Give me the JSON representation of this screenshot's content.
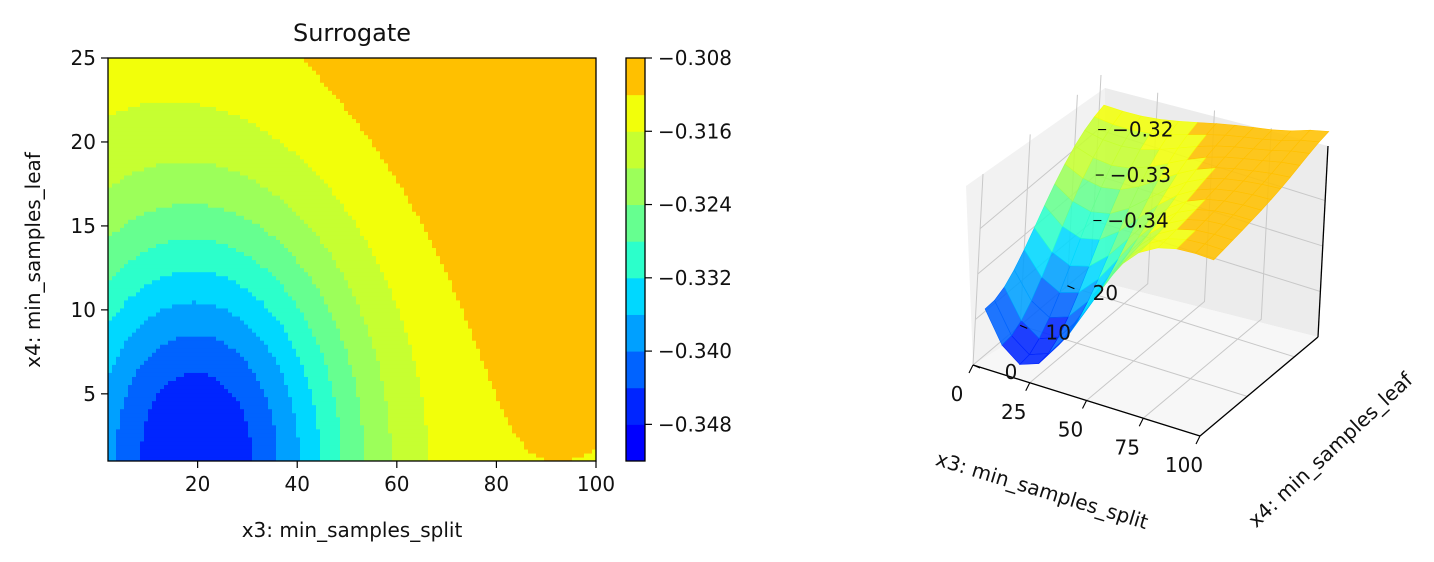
{
  "chart_data": [
    {
      "type": "contour",
      "title": "Surrogate",
      "xlabel": "x3: min_samples_split",
      "ylabel": "x4: min_samples_leaf",
      "xlim": [
        2,
        100
      ],
      "ylim": [
        1,
        25
      ],
      "xticks": [
        "20",
        "40",
        "60",
        "80",
        "100"
      ],
      "yticks": [
        "5",
        "10",
        "15",
        "20",
        "25"
      ],
      "min_point": {
        "x": 19,
        "y": 1.5,
        "z": -0.3495
      },
      "max_point": {
        "x": 100,
        "y": 25,
        "z": -0.309
      },
      "colorbar": {
        "levels": [
          -0.352,
          -0.348,
          -0.344,
          -0.34,
          -0.336,
          -0.332,
          -0.328,
          -0.324,
          -0.32,
          -0.316,
          -0.312,
          -0.308
        ],
        "ticks": [
          "−0.348",
          "−0.340",
          "−0.332",
          "−0.324",
          "−0.316",
          "−0.308"
        ],
        "colors": [
          "#0000ff",
          "#0025ff",
          "#0063ff",
          "#00a0ff",
          "#00d8ff",
          "#2cffcb",
          "#66ff90",
          "#9cff5a",
          "#c6ff31",
          "#f2ff0a",
          "#ffc000"
        ]
      }
    },
    {
      "type": "surface3d",
      "xlabel": "x3: min_samples_split",
      "ylabel": "x4: min_samples_leaf",
      "xticks": [
        "0",
        "25",
        "50",
        "75",
        "100"
      ],
      "yticks": [
        "0",
        "10",
        "20"
      ],
      "zticks": [
        "−0.34",
        "−0.33",
        "−0.32"
      ],
      "xlim": [
        0,
        100
      ],
      "ylim": [
        0,
        25
      ],
      "zlim": [
        -0.35,
        -0.308
      ]
    }
  ]
}
